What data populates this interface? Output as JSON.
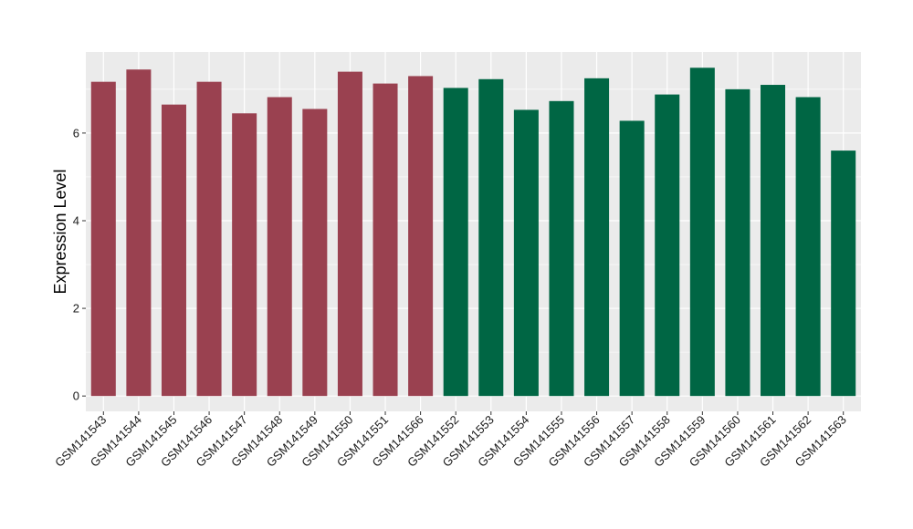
{
  "chart_data": {
    "type": "bar",
    "title": "",
    "xlabel": "",
    "ylabel": "Expression Level",
    "ylim": [
      -0.35,
      7.85
    ],
    "yticks": [
      0,
      2,
      4,
      6
    ],
    "grid": true,
    "colors": {
      "group_a": "#9a4150",
      "group_b": "#006644",
      "panel_bg": "#ebebeb",
      "grid": "#ffffff"
    },
    "categories": [
      "GSM141543",
      "GSM141544",
      "GSM141545",
      "GSM141546",
      "GSM141547",
      "GSM141548",
      "GSM141549",
      "GSM141550",
      "GSM141551",
      "GSM141566",
      "GSM141552",
      "GSM141553",
      "GSM141554",
      "GSM141555",
      "GSM141556",
      "GSM141557",
      "GSM141558",
      "GSM141559",
      "GSM141560",
      "GSM141561",
      "GSM141562",
      "GSM141563"
    ],
    "values": [
      7.17,
      7.45,
      6.65,
      7.17,
      6.45,
      6.82,
      6.55,
      7.4,
      7.13,
      7.3,
      7.03,
      7.23,
      6.53,
      6.73,
      7.25,
      6.28,
      6.88,
      7.49,
      7.0,
      7.1,
      6.82,
      5.6
    ],
    "groups": [
      "a",
      "a",
      "a",
      "a",
      "a",
      "a",
      "a",
      "a",
      "a",
      "a",
      "b",
      "b",
      "b",
      "b",
      "b",
      "b",
      "b",
      "b",
      "b",
      "b",
      "b",
      "b"
    ]
  }
}
